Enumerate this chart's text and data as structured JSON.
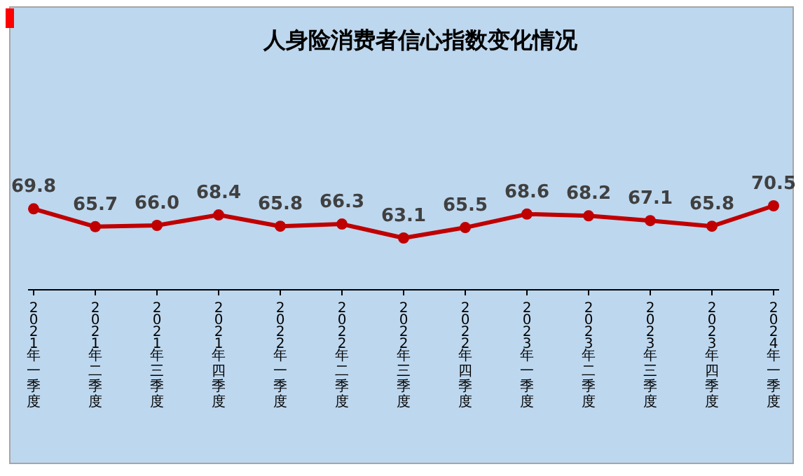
{
  "chart_data": {
    "type": "line",
    "title": "人身险消费者信心指数变化情况",
    "categories": [
      "2021年一季度",
      "2021年二季度",
      "2021年三季度",
      "2021年四季度",
      "2022年一季度",
      "2022年二季度",
      "2022年三季度",
      "2022年四季度",
      "2023年一季度",
      "2023年二季度",
      "2023年三季度",
      "2023年四季度",
      "2024年一季度"
    ],
    "values": [
      69.8,
      65.7,
      66.0,
      68.4,
      65.8,
      66.3,
      63.1,
      65.5,
      68.6,
      68.2,
      67.1,
      65.8,
      70.5
    ],
    "value_labels": [
      "69.8",
      "65.7",
      "66.0",
      "68.4",
      "65.8",
      "66.3",
      "63.1",
      "65.5",
      "68.6",
      "68.2",
      "67.1",
      "65.8",
      "70.5"
    ],
    "color": "#c00000",
    "marker": "circle"
  }
}
